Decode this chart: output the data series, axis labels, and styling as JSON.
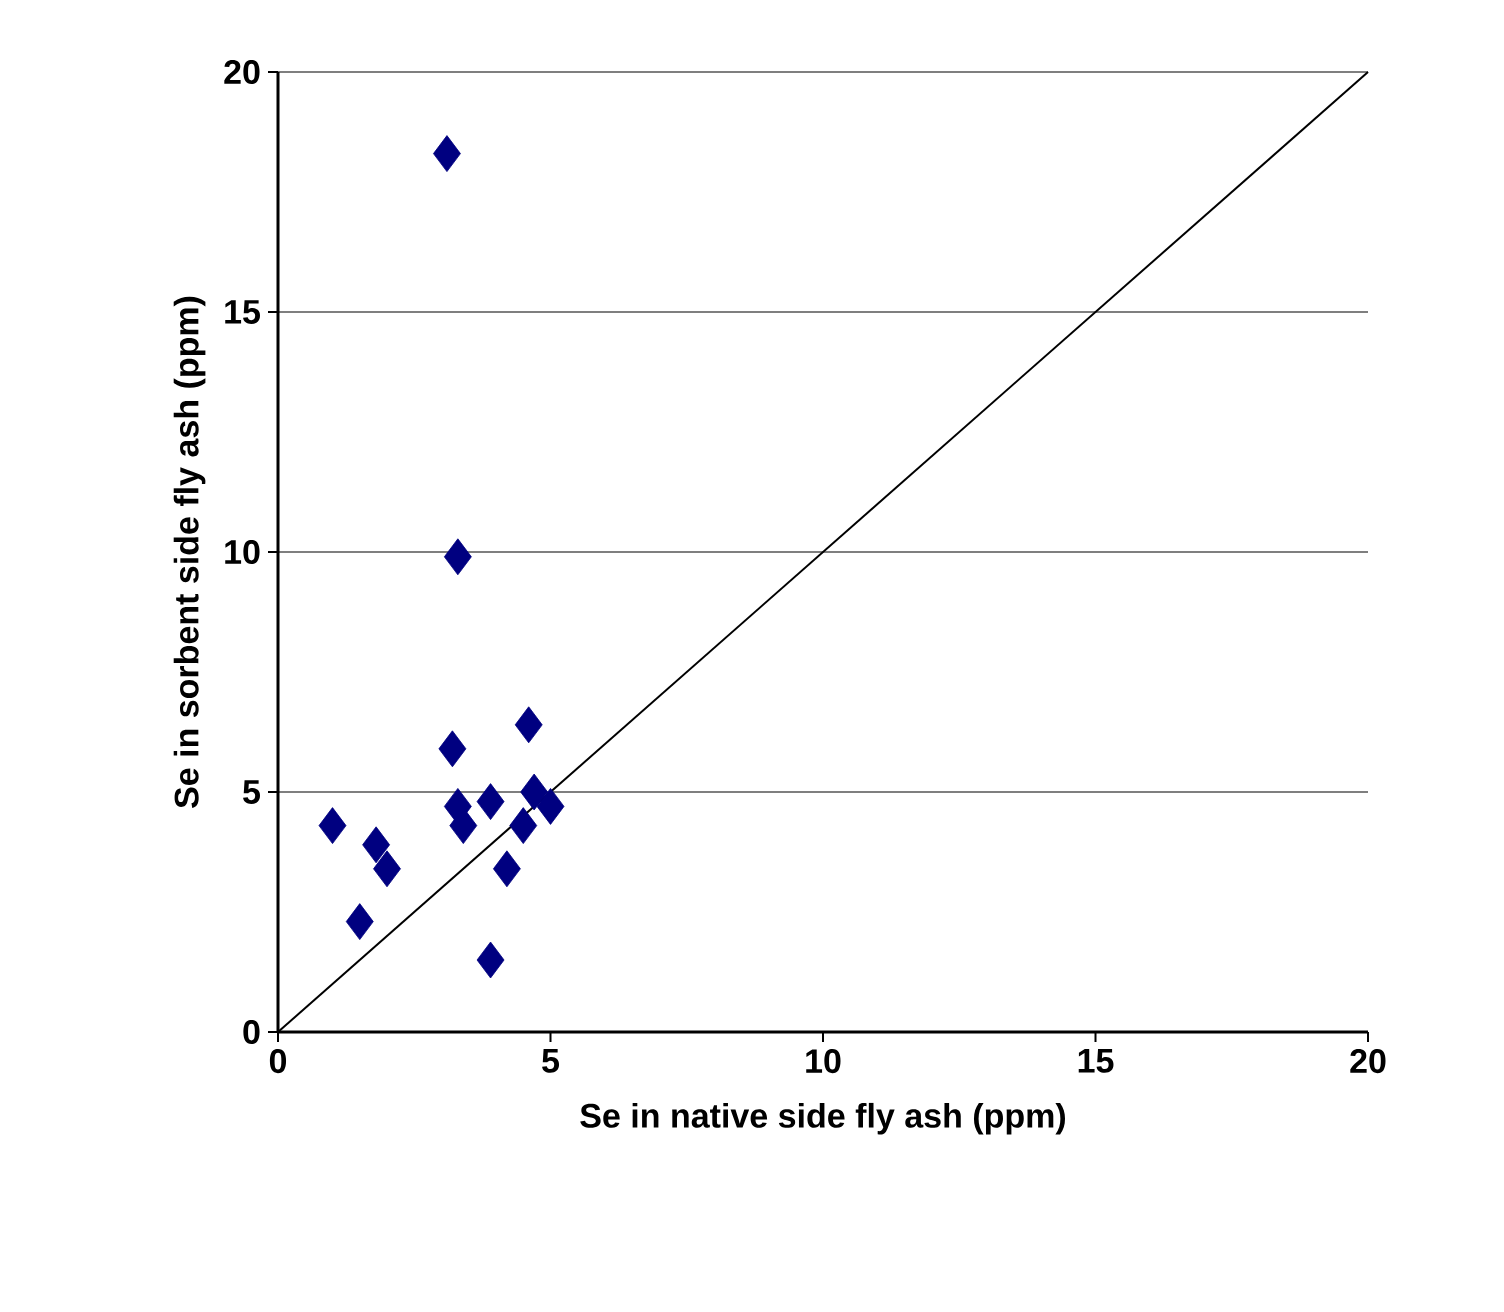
{
  "chart_data": {
    "type": "scatter",
    "xlabel": "Se in native side fly ash (ppm)",
    "ylabel": "Se in sorbent side fly ash (ppm)",
    "xlim": [
      0,
      20
    ],
    "ylim": [
      0,
      20
    ],
    "xticks": [
      0,
      5,
      10,
      15,
      20
    ],
    "yticks": [
      0,
      5,
      10,
      15,
      20
    ],
    "grid": "y",
    "marker": "diamond",
    "series": [
      {
        "color": "#000080",
        "x": [
          3.1,
          3.3,
          3.2,
          4.6,
          1.0,
          1.8,
          2.0,
          1.5,
          4.2,
          3.9,
          3.3,
          3.4,
          3.9,
          4.7,
          5.0,
          4.5
        ],
        "values": [
          18.3,
          9.9,
          5.9,
          6.4,
          4.3,
          3.9,
          3.4,
          2.3,
          3.4,
          1.5,
          4.7,
          4.3,
          4.8,
          5.0,
          4.7,
          4.3
        ]
      },
      {
        "type": "line",
        "color": "#000000",
        "marker": "none",
        "x": [
          0,
          20
        ],
        "values": [
          0,
          20
        ]
      }
    ]
  }
}
